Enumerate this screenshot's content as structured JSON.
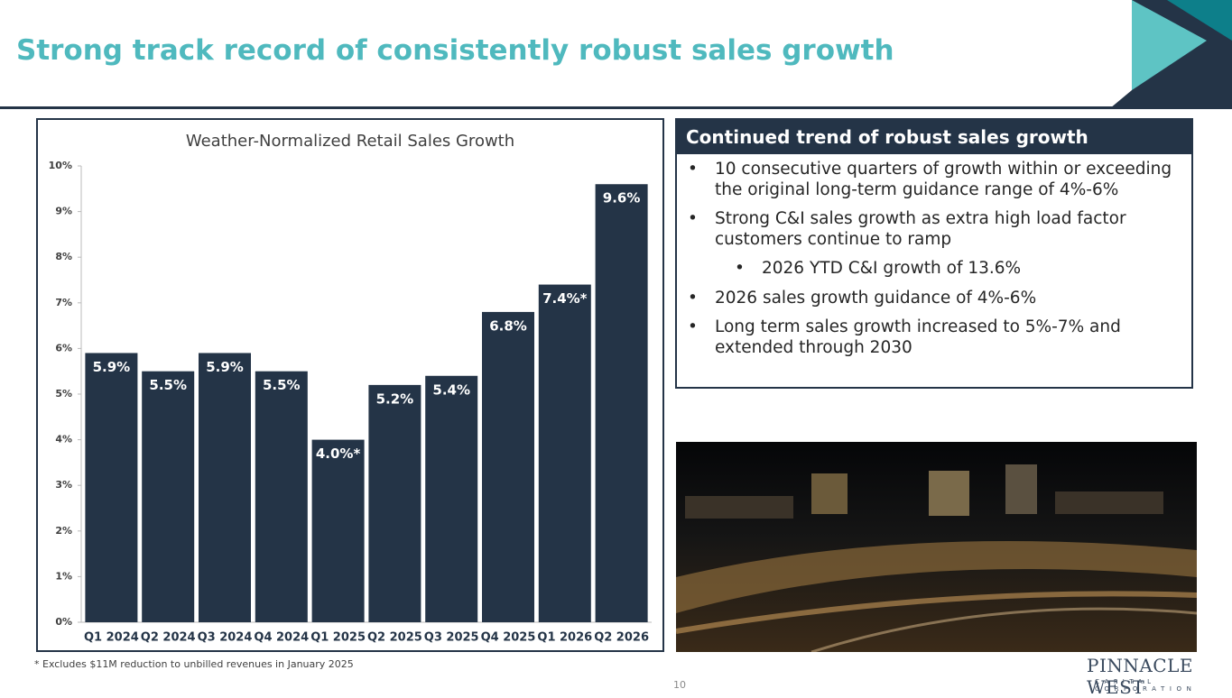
{
  "header": {
    "title": "Strong track record of consistently robust sales growth"
  },
  "chart_data": {
    "type": "bar",
    "title": "Weather-Normalized Retail Sales Growth",
    "categories": [
      "Q1 2024",
      "Q2 2024",
      "Q3 2024",
      "Q4 2024",
      "Q1 2025",
      "Q2 2025",
      "Q3 2025",
      "Q4 2025",
      "Q1 2026",
      "Q2 2026"
    ],
    "values": [
      5.9,
      5.5,
      5.9,
      5.5,
      4.0,
      5.2,
      5.4,
      6.8,
      7.4,
      9.6
    ],
    "value_labels": [
      "5.9%",
      "5.5%",
      "5.9%",
      "5.5%",
      "4.0%*",
      "5.2%",
      "5.4%",
      "6.8%",
      "7.4%*",
      "9.6%"
    ],
    "color": "#243447",
    "ylim": [
      0,
      10
    ],
    "yticks": [
      {
        "value": 0,
        "label": "0%"
      },
      {
        "value": 1,
        "label": "1%"
      },
      {
        "value": 2,
        "label": "2%"
      },
      {
        "value": 3,
        "label": "3%"
      },
      {
        "value": 4,
        "label": "4%"
      },
      {
        "value": 5,
        "label": "5%"
      },
      {
        "value": 6,
        "label": "6%"
      },
      {
        "value": 7,
        "label": "7%"
      },
      {
        "value": 8,
        "label": "8%"
      },
      {
        "value": 9,
        "label": "9%"
      },
      {
        "value": 10,
        "label": "10%"
      }
    ]
  },
  "panel": {
    "title": "Continued trend of robust sales growth",
    "bullets": [
      {
        "text": "10 consecutive quarters of growth within or exceeding the original long-term guidance range of 4%-6%"
      },
      {
        "text": "Strong C&I sales growth as extra high load factor customers continue to ramp",
        "sub": [
          "2026 YTD C&I growth of 13.6%"
        ]
      },
      {
        "text": "2026 sales growth guidance of 4%-6%"
      },
      {
        "text": "Long term sales growth increased to 5%-7% and extended through 2030"
      }
    ]
  },
  "footnote": "* Excludes $11M reduction to unbilled revenues in January 2025",
  "page_number": "10",
  "logo": {
    "name": "PINNACLE WEST",
    "tagline": "CAPITAL CORPORATION"
  }
}
